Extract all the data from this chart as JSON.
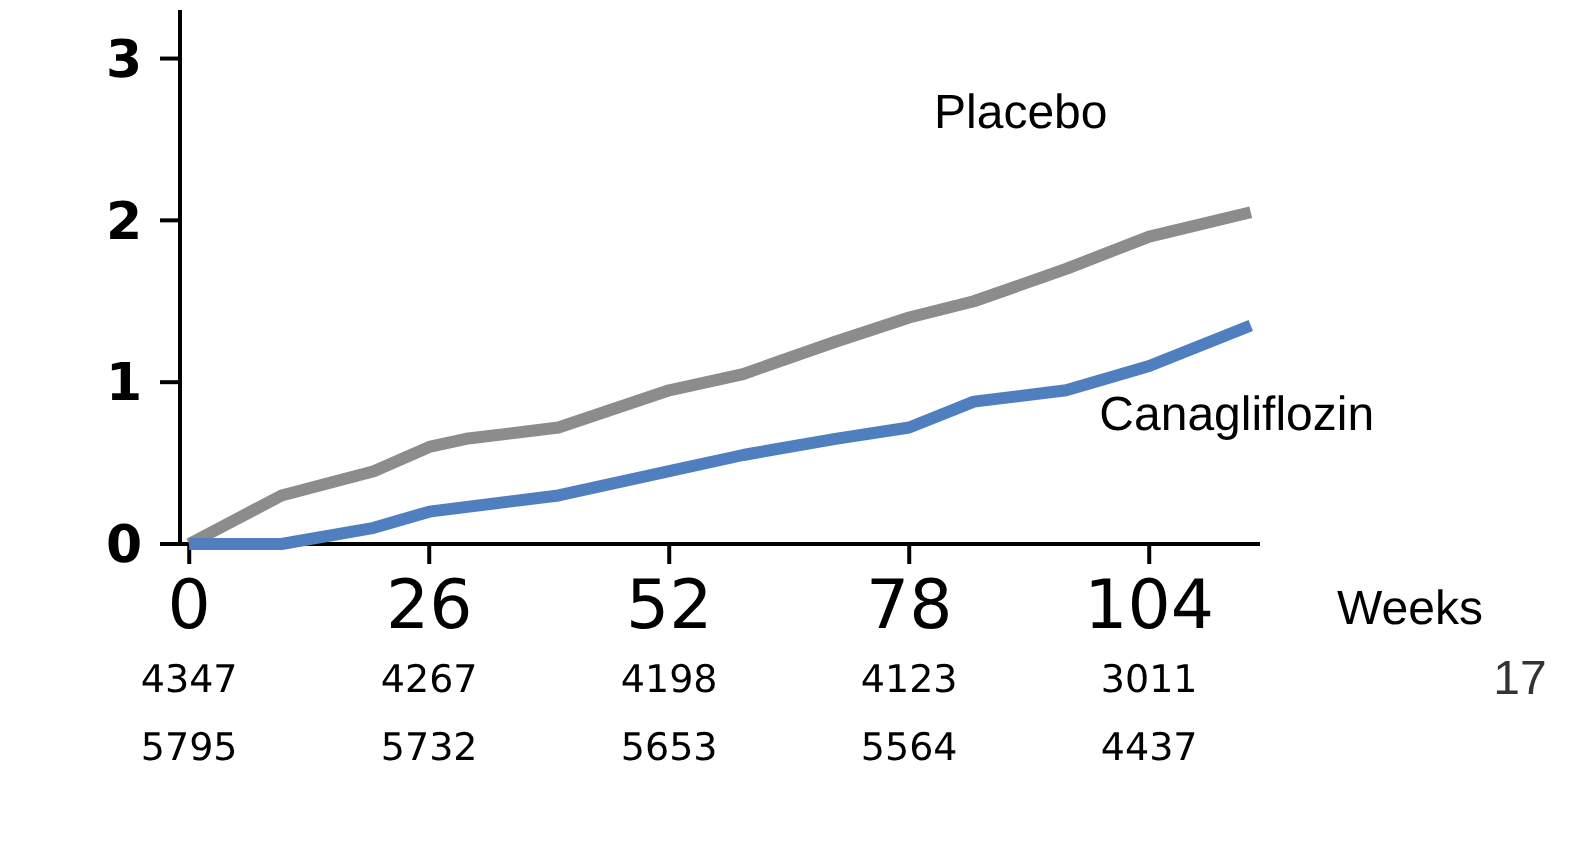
{
  "chart_data": {
    "type": "line",
    "xlabel": "Weeks",
    "xlim": [
      -1,
      116
    ],
    "xticks": [
      0,
      26,
      52,
      78,
      104
    ],
    "ylim": [
      0,
      3.3
    ],
    "yticks": [
      0,
      1,
      2,
      3
    ],
    "grid": false,
    "legend": false,
    "marker": "none",
    "line_style": "solid",
    "series": [
      {
        "name": "Placebo",
        "color": "#8c8c8c",
        "x": [
          0,
          5,
          10,
          20,
          26,
          30,
          40,
          52,
          60,
          70,
          78,
          85,
          95,
          104,
          115
        ],
        "values": [
          0,
          0.15,
          0.3,
          0.45,
          0.6,
          0.65,
          0.72,
          0.95,
          1.05,
          1.25,
          1.4,
          1.5,
          1.7,
          1.9,
          2.05
        ]
      },
      {
        "name": "Canagliflozin",
        "color": "#4f7fbf",
        "x": [
          0,
          10,
          20,
          26,
          40,
          52,
          60,
          70,
          78,
          85,
          95,
          104,
          115
        ],
        "values": [
          0,
          0,
          0.1,
          0.2,
          0.3,
          0.45,
          0.55,
          0.65,
          0.72,
          0.88,
          0.95,
          1.1,
          1.35
        ]
      }
    ],
    "annotations": [
      "4347 4267 4198 4123 3011",
      "5795 5732 5653 5564 4437",
      "17"
    ]
  }
}
